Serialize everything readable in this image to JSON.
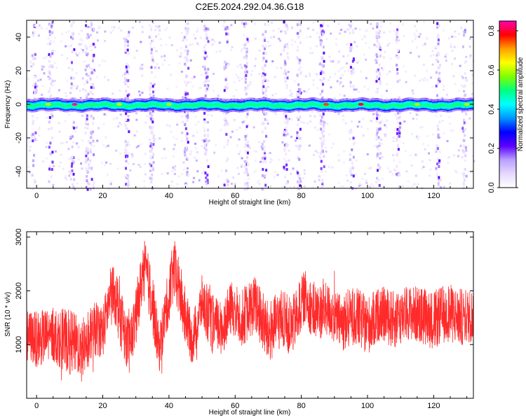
{
  "title": "C2E5.2024.292.04.36.G18",
  "chart_data": [
    {
      "type": "heatmap",
      "xlabel": "Height of straight line (km)",
      "ylabel": "Frequency (Hz)",
      "xlim": [
        -3,
        132
      ],
      "ylim": [
        -50,
        50
      ],
      "x_ticks": [
        "0",
        "20",
        "40",
        "60",
        "80",
        "100",
        "120"
      ],
      "y_ticks": [
        "-40",
        "-20",
        "0",
        "20",
        "40"
      ],
      "colorbar": {
        "label": "Normalized spectral amplitude",
        "range": [
          0,
          0.85
        ],
        "ticks": [
          "0.0",
          "0.2",
          "0.4",
          "0.6",
          "0.8"
        ],
        "colors": [
          "#ffffff",
          "#e6d8ff",
          "#b9a0ff",
          "#5a00ff",
          "#0000ff",
          "#0096ff",
          "#00ffff",
          "#00ff80",
          "#7fff00",
          "#ffff00",
          "#ffa000",
          "#ff0000",
          "#ff00b4"
        ]
      },
      "main_band": {
        "center_hz": 0,
        "half_width_hz": 2.5
      },
      "hotspots": [
        {
          "x": 11.5,
          "y": 0,
          "level": 0.85
        },
        {
          "x": 98,
          "y": 0,
          "level": 0.8
        },
        {
          "x": 87.5,
          "y": 0,
          "level": 0.75
        },
        {
          "x": 25,
          "y": 0,
          "level": 0.6
        },
        {
          "x": 40,
          "y": 0,
          "level": 0.6
        },
        {
          "x": 3.5,
          "y": 0,
          "level": 0.6
        },
        {
          "x": 115,
          "y": 0,
          "level": 0.6
        },
        {
          "x": 130,
          "y": 0,
          "level": 0.6
        }
      ],
      "vertical_streaks": [
        -1,
        4,
        10.5,
        15,
        16.5,
        27,
        34.5,
        45,
        51,
        57,
        63,
        68.5,
        75,
        79,
        86,
        95,
        103,
        109,
        121,
        129
      ]
    },
    {
      "type": "line",
      "xlabel": "Height of straight line (km)",
      "ylabel": "SNR (10 * v/v)",
      "xlim": [
        -3,
        132
      ],
      "ylim": [
        0,
        3100
      ],
      "x_ticks": [
        "0",
        "20",
        "40",
        "60",
        "80",
        "100",
        "120"
      ],
      "y_ticks": [
        "1000",
        "2000",
        "3000"
      ],
      "series": [
        {
          "color": "#ff2b2b",
          "envelope": [
            {
              "x": -3,
              "mean": 1180,
              "spread": 480
            },
            {
              "x": 0,
              "mean": 1100,
              "spread": 520
            },
            {
              "x": 5,
              "mean": 1180,
              "spread": 520
            },
            {
              "x": 10,
              "mean": 1050,
              "spread": 600
            },
            {
              "x": 14,
              "mean": 950,
              "spread": 550
            },
            {
              "x": 18,
              "mean": 1300,
              "spread": 520
            },
            {
              "x": 20,
              "mean": 1250,
              "spread": 500
            },
            {
              "x": 23,
              "mean": 2100,
              "spread": 520
            },
            {
              "x": 25,
              "mean": 1650,
              "spread": 650
            },
            {
              "x": 28,
              "mean": 950,
              "spread": 500
            },
            {
              "x": 30,
              "mean": 1500,
              "spread": 550
            },
            {
              "x": 32.5,
              "mean": 2500,
              "spread": 500
            },
            {
              "x": 35,
              "mean": 1800,
              "spread": 600
            },
            {
              "x": 37,
              "mean": 900,
              "spread": 450
            },
            {
              "x": 39,
              "mean": 1600,
              "spread": 500
            },
            {
              "x": 41.5,
              "mean": 2400,
              "spread": 600
            },
            {
              "x": 44,
              "mean": 1800,
              "spread": 550
            },
            {
              "x": 47,
              "mean": 1050,
              "spread": 450
            },
            {
              "x": 50,
              "mean": 1800,
              "spread": 500
            },
            {
              "x": 53,
              "mean": 1400,
              "spread": 550
            },
            {
              "x": 56,
              "mean": 1300,
              "spread": 500
            },
            {
              "x": 59,
              "mean": 1700,
              "spread": 500
            },
            {
              "x": 62,
              "mean": 1500,
              "spread": 550
            },
            {
              "x": 66,
              "mean": 1750,
              "spread": 550
            },
            {
              "x": 70,
              "mean": 1200,
              "spread": 600
            },
            {
              "x": 74,
              "mean": 1500,
              "spread": 550
            },
            {
              "x": 77,
              "mean": 1300,
              "spread": 550
            },
            {
              "x": 81,
              "mean": 1900,
              "spread": 500
            },
            {
              "x": 84,
              "mean": 1600,
              "spread": 550
            },
            {
              "x": 88,
              "mean": 1650,
              "spread": 500
            },
            {
              "x": 92,
              "mean": 1400,
              "spread": 550
            },
            {
              "x": 96,
              "mean": 1550,
              "spread": 550
            },
            {
              "x": 100,
              "mean": 1350,
              "spread": 550
            },
            {
              "x": 104,
              "mean": 1600,
              "spread": 500
            },
            {
              "x": 108,
              "mean": 1450,
              "spread": 550
            },
            {
              "x": 112,
              "mean": 1600,
              "spread": 500
            },
            {
              "x": 116,
              "mean": 1550,
              "spread": 550
            },
            {
              "x": 120,
              "mean": 1450,
              "spread": 550
            },
            {
              "x": 124,
              "mean": 1600,
              "spread": 550
            },
            {
              "x": 128,
              "mean": 1500,
              "spread": 550
            },
            {
              "x": 132,
              "mean": 1550,
              "spread": 500
            }
          ]
        }
      ]
    }
  ]
}
